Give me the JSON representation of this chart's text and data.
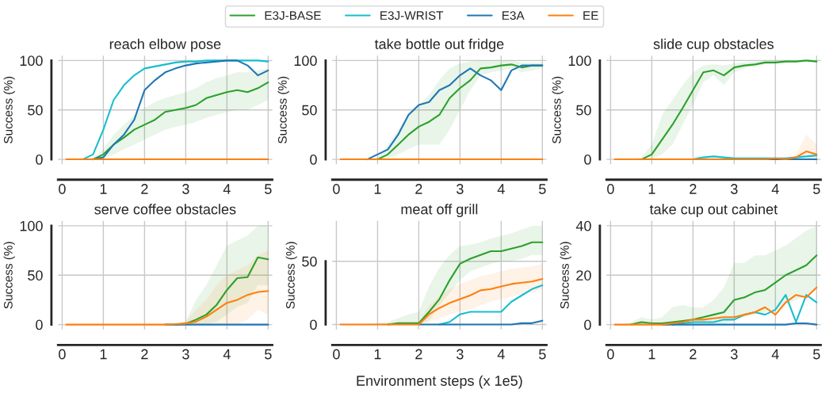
{
  "chart_data": [
    {
      "type": "line",
      "title": "reach elbow pose",
      "ylabel": "Success (%)",
      "legend": "top",
      "grid": true,
      "xlim": [
        -0.1,
        5.1
      ],
      "ylim": [
        -5,
        105
      ],
      "xticks": [
        0,
        1,
        2,
        3,
        4,
        5
      ],
      "yticks": [
        0,
        50,
        100
      ],
      "x": [
        0.1,
        0.25,
        0.5,
        0.75,
        1,
        1.25,
        1.5,
        1.75,
        2,
        2.25,
        2.5,
        2.75,
        3,
        3.25,
        3.5,
        3.75,
        4,
        4.25,
        4.5,
        4.75,
        5
      ],
      "series": [
        {
          "name": "E3J-BASE",
          "color": "#2ca02c",
          "values": [
            null,
            null,
            null,
            0,
            5,
            15,
            22,
            30,
            35,
            40,
            48,
            50,
            52,
            55,
            62,
            65,
            68,
            70,
            68,
            72,
            78
          ],
          "lower": [
            0,
            0,
            0,
            0,
            0,
            5,
            10,
            15,
            20,
            25,
            30,
            33,
            35,
            38,
            42,
            45,
            48,
            50,
            50,
            55,
            60
          ],
          "upper": [
            0,
            0,
            0,
            2,
            10,
            25,
            35,
            45,
            52,
            58,
            62,
            65,
            68,
            72,
            78,
            82,
            85,
            88,
            88,
            90,
            92
          ]
        },
        {
          "name": "E3J-WRIST",
          "color": "#17becf",
          "values": [
            null,
            null,
            0,
            5,
            30,
            60,
            75,
            85,
            92,
            94,
            96,
            98,
            99,
            99,
            100,
            100,
            100,
            100,
            100,
            100,
            99
          ]
        },
        {
          "name": "E3A",
          "color": "#1f77b4",
          "values": [
            null,
            null,
            null,
            0,
            2,
            15,
            25,
            40,
            70,
            80,
            88,
            92,
            95,
            97,
            98,
            99,
            100,
            100,
            95,
            85,
            90
          ]
        },
        {
          "name": "EE",
          "color": "#ff7f0e",
          "values": [
            0,
            0,
            0,
            0,
            0,
            0,
            0,
            0,
            0,
            0,
            0,
            0,
            0,
            0,
            0,
            0,
            0,
            0,
            0,
            0,
            0
          ]
        }
      ]
    },
    {
      "type": "line",
      "title": "take bottle out fridge",
      "ylabel": "Success (%)",
      "grid": true,
      "xlim": [
        -0.1,
        5.1
      ],
      "ylim": [
        -5,
        105
      ],
      "xticks": [
        0,
        1,
        2,
        3,
        4,
        5
      ],
      "yticks": [
        0,
        50,
        100
      ],
      "x": [
        0.1,
        0.25,
        0.5,
        0.75,
        1,
        1.25,
        1.5,
        1.75,
        2,
        2.25,
        2.5,
        2.75,
        3,
        3.25,
        3.5,
        3.75,
        4,
        4.25,
        4.5,
        4.75,
        5
      ],
      "series": [
        {
          "color": "#2ca02c",
          "values": [
            null,
            null,
            null,
            null,
            0,
            5,
            15,
            25,
            33,
            38,
            45,
            62,
            72,
            80,
            92,
            93,
            95,
            96,
            93,
            95,
            95
          ],
          "lower": [
            0,
            0,
            0,
            0,
            0,
            0,
            5,
            10,
            15,
            15,
            15,
            30,
            50,
            70,
            85,
            88,
            90,
            92,
            88,
            90,
            92
          ],
          "upper": [
            0,
            0,
            0,
            0,
            2,
            15,
            30,
            45,
            55,
            65,
            80,
            92,
            97,
            99,
            100,
            100,
            100,
            100,
            98,
            98,
            98
          ]
        },
        {
          "color": "#17becf",
          "values": [
            null,
            null,
            null,
            null,
            null,
            null,
            null,
            null,
            null,
            null,
            null,
            null,
            null,
            null,
            null,
            null,
            null,
            null,
            null,
            null,
            null
          ]
        },
        {
          "color": "#1f77b4",
          "values": [
            null,
            null,
            null,
            0,
            5,
            10,
            25,
            45,
            55,
            58,
            70,
            75,
            85,
            92,
            85,
            80,
            70,
            90,
            95,
            95,
            95
          ]
        },
        {
          "color": "#ff7f0e",
          "values": [
            0,
            0,
            0,
            0,
            0,
            0,
            0,
            0,
            0,
            0,
            0,
            0,
            0,
            0,
            0,
            0,
            0,
            0,
            0,
            0,
            0
          ]
        }
      ]
    },
    {
      "type": "line",
      "title": "slide cup obstacles",
      "ylabel": "Success (%)",
      "grid": true,
      "xlim": [
        -0.1,
        5.1
      ],
      "ylim": [
        -5,
        105
      ],
      "xticks": [
        0,
        1,
        2,
        3,
        4,
        5
      ],
      "yticks": [
        0,
        50,
        100
      ],
      "x": [
        0.1,
        0.25,
        0.5,
        0.75,
        1,
        1.25,
        1.5,
        1.75,
        2,
        2.25,
        2.5,
        2.75,
        3,
        3.25,
        3.5,
        3.75,
        4,
        4.25,
        4.5,
        4.75,
        5
      ],
      "series": [
        {
          "color": "#2ca02c",
          "values": [
            null,
            null,
            null,
            0,
            5,
            20,
            35,
            52,
            70,
            88,
            90,
            85,
            93,
            95,
            96,
            98,
            98,
            99,
            99,
            100,
            99
          ],
          "lower": [
            0,
            0,
            0,
            0,
            0,
            5,
            15,
            35,
            55,
            78,
            85,
            75,
            88,
            92,
            94,
            96,
            97,
            98,
            98,
            99,
            98
          ],
          "upper": [
            0,
            0,
            0,
            2,
            15,
            45,
            60,
            75,
            88,
            95,
            96,
            95,
            97,
            98,
            99,
            100,
            100,
            100,
            100,
            100,
            100
          ]
        },
        {
          "color": "#17becf",
          "values": [
            null,
            null,
            null,
            null,
            null,
            null,
            null,
            null,
            0,
            2,
            3,
            2,
            1,
            1,
            1,
            1,
            1,
            1,
            2,
            3,
            4
          ]
        },
        {
          "color": "#1f77b4",
          "values": [
            null,
            null,
            null,
            null,
            null,
            null,
            null,
            null,
            null,
            null,
            null,
            null,
            null,
            null,
            null,
            0,
            0,
            0,
            0,
            0,
            0
          ]
        },
        {
          "color": "#ff7f0e",
          "values": [
            0,
            0,
            0,
            0,
            0,
            0,
            0,
            0,
            0,
            0,
            0,
            0,
            0,
            0,
            0,
            0,
            1,
            0,
            2,
            8,
            5
          ],
          "lower": [
            0,
            0,
            0,
            0,
            0,
            0,
            0,
            0,
            0,
            0,
            0,
            0,
            0,
            0,
            0,
            0,
            0,
            0,
            0,
            0,
            0
          ],
          "upper": [
            0,
            0,
            0,
            0,
            0,
            0,
            0,
            0,
            0,
            0,
            0,
            0,
            0,
            0,
            0,
            0,
            2,
            1,
            5,
            25,
            15
          ]
        }
      ]
    },
    {
      "type": "line",
      "title": "serve coffee obstacles",
      "ylabel": "Success (%)",
      "grid": true,
      "xlim": [
        -0.1,
        5.1
      ],
      "ylim": [
        -5,
        105
      ],
      "xticks": [
        0,
        1,
        2,
        3,
        4,
        5
      ],
      "yticks": [
        0,
        50,
        100
      ],
      "x": [
        0.1,
        0.25,
        0.5,
        0.75,
        1,
        1.25,
        1.5,
        1.75,
        2,
        2.25,
        2.5,
        2.75,
        3,
        3.25,
        3.5,
        3.75,
        4,
        4.25,
        4.5,
        4.75,
        5
      ],
      "series": [
        {
          "color": "#2ca02c",
          "values": [
            null,
            null,
            null,
            null,
            null,
            null,
            null,
            null,
            null,
            null,
            null,
            0,
            1,
            5,
            10,
            20,
            35,
            47,
            48,
            68,
            66
          ],
          "lower": [
            0,
            0,
            0,
            0,
            0,
            0,
            0,
            0,
            0,
            0,
            0,
            0,
            0,
            0,
            0,
            3,
            10,
            18,
            22,
            40,
            40
          ],
          "upper": [
            0,
            0,
            0,
            0,
            0,
            0,
            0,
            0,
            0,
            0,
            0,
            1,
            3,
            25,
            40,
            60,
            80,
            85,
            90,
            100,
            100
          ]
        },
        {
          "color": "#17becf",
          "values": [
            null,
            null,
            null,
            null,
            null,
            null,
            null,
            null,
            null,
            null,
            null,
            null,
            null,
            null,
            null,
            null,
            null,
            null,
            null,
            null,
            null
          ]
        },
        {
          "color": "#1f77b4",
          "values": [
            null,
            null,
            null,
            null,
            null,
            null,
            null,
            null,
            null,
            null,
            0,
            0,
            0,
            0,
            0,
            0,
            0,
            0,
            0,
            0,
            0
          ]
        },
        {
          "color": "#ff7f0e",
          "values": [
            0,
            0,
            0,
            0,
            0,
            0,
            0,
            0,
            0,
            0,
            0,
            0.5,
            1,
            3,
            8,
            15,
            22,
            25,
            30,
            33,
            34
          ],
          "lower": [
            0,
            0,
            0,
            0,
            0,
            0,
            0,
            0,
            0,
            0,
            0,
            0,
            0,
            0,
            0,
            0,
            0,
            0,
            5,
            15,
            10
          ],
          "upper": [
            0,
            0,
            0,
            0,
            0,
            0,
            0,
            0,
            0,
            0,
            0,
            1,
            3,
            15,
            25,
            40,
            50,
            55,
            60,
            70,
            75
          ]
        }
      ]
    },
    {
      "type": "line",
      "title": "meat off grill",
      "ylabel": "Success (%)",
      "xlabel": "Environment steps (x 1e5)",
      "grid": true,
      "xlim": [
        -0.1,
        5.1
      ],
      "ylim": [
        -4,
        82
      ],
      "xticks": [
        0,
        1,
        2,
        3,
        4,
        5
      ],
      "yticks": [
        0,
        50
      ],
      "x": [
        0.1,
        0.25,
        0.5,
        0.75,
        1,
        1.25,
        1.5,
        1.75,
        2,
        2.25,
        2.5,
        2.75,
        3,
        3.25,
        3.5,
        3.75,
        4,
        4.25,
        4.5,
        4.75,
        5
      ],
      "series": [
        {
          "color": "#2ca02c",
          "values": [
            null,
            null,
            null,
            null,
            null,
            0,
            1,
            1,
            1,
            10,
            20,
            35,
            48,
            52,
            55,
            58,
            58,
            60,
            62,
            65,
            65
          ],
          "lower": [
            0,
            0,
            0,
            0,
            0,
            0,
            0,
            0,
            0,
            3,
            15,
            25,
            35,
            42,
            45,
            48,
            50,
            50,
            52,
            55,
            55
          ],
          "upper": [
            0,
            0,
            0,
            0,
            1,
            2,
            5,
            8,
            10,
            30,
            45,
            55,
            62,
            63,
            65,
            68,
            70,
            72,
            75,
            78,
            78
          ]
        },
        {
          "color": "#17becf",
          "values": [
            null,
            null,
            null,
            null,
            null,
            null,
            null,
            null,
            null,
            null,
            0,
            2,
            8,
            10,
            10,
            10,
            10,
            18,
            23,
            28,
            31
          ]
        },
        {
          "color": "#1f77b4",
          "values": [
            null,
            null,
            null,
            null,
            null,
            null,
            null,
            null,
            0,
            0,
            0,
            0,
            0,
            0,
            0,
            0,
            0,
            0,
            1,
            1,
            3
          ]
        },
        {
          "color": "#ff7f0e",
          "values": [
            0,
            0,
            0,
            0,
            0,
            0,
            0,
            0,
            0,
            8,
            13,
            17,
            20,
            23,
            27,
            28,
            30,
            32,
            33,
            34,
            36
          ],
          "lower": [
            0,
            0,
            0,
            0,
            0,
            0,
            0,
            0,
            0,
            2,
            5,
            8,
            10,
            12,
            15,
            18,
            20,
            22,
            24,
            25,
            28
          ],
          "upper": [
            0,
            0,
            0,
            0,
            0,
            0,
            0,
            0,
            2,
            15,
            22,
            28,
            32,
            35,
            38,
            40,
            42,
            44,
            45,
            46,
            48
          ]
        }
      ]
    },
    {
      "type": "line",
      "title": "take cup out cabinet",
      "ylabel": "Success (%)",
      "grid": true,
      "xlim": [
        -0.1,
        5.1
      ],
      "ylim": [
        -2,
        42
      ],
      "xticks": [
        0,
        1,
        2,
        3,
        4,
        5
      ],
      "yticks": [
        0,
        20,
        40
      ],
      "x": [
        0.1,
        0.25,
        0.5,
        0.75,
        1,
        1.25,
        1.5,
        1.75,
        2,
        2.25,
        2.5,
        2.75,
        3,
        3.25,
        3.5,
        3.75,
        4,
        4.25,
        4.5,
        4.75,
        5
      ],
      "series": [
        {
          "color": "#2ca02c",
          "values": [
            null,
            null,
            0,
            1,
            0.5,
            0.5,
            1,
            1.5,
            2,
            3,
            4,
            5,
            10,
            11,
            13,
            14,
            17,
            20,
            22,
            24,
            28
          ],
          "lower": [
            0,
            0,
            0,
            0,
            0,
            0,
            0,
            0,
            0,
            0,
            0,
            0,
            2,
            3,
            4,
            5,
            6,
            8,
            10,
            12,
            15
          ],
          "upper": [
            0,
            0,
            1,
            3,
            2,
            3,
            7,
            8,
            7,
            7,
            10,
            15,
            25,
            25,
            28,
            28,
            30,
            32,
            35,
            38,
            40
          ]
        },
        {
          "color": "#17becf",
          "values": [
            null,
            null,
            null,
            null,
            null,
            null,
            0,
            0.5,
            1,
            1,
            1,
            2,
            2,
            4,
            5,
            4,
            6,
            12,
            1,
            12,
            9
          ]
        },
        {
          "color": "#1f77b4",
          "values": [
            null,
            null,
            null,
            null,
            null,
            0,
            0,
            0,
            0,
            0,
            0,
            0,
            0,
            0,
            0,
            0,
            0,
            0,
            0.5,
            0.5,
            0
          ]
        },
        {
          "color": "#ff7f0e",
          "values": [
            0,
            0,
            0,
            0,
            0,
            0,
            0.5,
            1,
            2,
            2,
            2.5,
            3,
            3,
            4,
            5,
            7,
            4,
            9,
            12,
            11,
            15
          ]
        }
      ]
    }
  ]
}
